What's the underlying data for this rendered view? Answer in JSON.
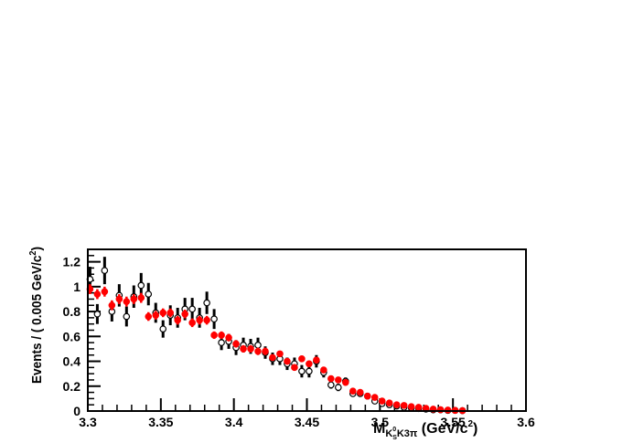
{
  "chart_data": {
    "type": "scatter",
    "title": "",
    "xlabel": {
      "main": "M",
      "sub": "K",
      "sub_super": "0",
      "sub_sub": "S",
      "sub_rest": "K3π",
      "units_open": " (GeV/c",
      "units_sup": "2",
      "units_close": ")"
    },
    "ylabel": {
      "main": "Events / ( 0.005 GeV/c",
      "sup": "2",
      "close": ")"
    },
    "xlim": [
      3.3,
      3.6
    ],
    "ylim": [
      0,
      1.3
    ],
    "x_ticks": [
      "3.3",
      "3.35",
      "3.4",
      "3.45",
      "3.5",
      "3.55",
      "3.6"
    ],
    "x_tick_values": [
      3.3,
      3.35,
      3.4,
      3.45,
      3.5,
      3.55,
      3.6
    ],
    "y_ticks": [
      "0",
      "0.2",
      "0.4",
      "0.6",
      "0.8",
      "1",
      "1.2"
    ],
    "y_tick_values": [
      0,
      0.2,
      0.4,
      0.6,
      0.8,
      1.0,
      1.2
    ],
    "grid": false,
    "colors": {
      "open_series": "#000000",
      "filled_series": "#ff0000",
      "axis": "#000000"
    },
    "series": [
      {
        "marker": "open-circle",
        "x": [
          3.3015,
          3.3065,
          3.3115,
          3.3165,
          3.3215,
          3.3265,
          3.3315,
          3.3365,
          3.3415,
          3.3465,
          3.3515,
          3.3565,
          3.3615,
          3.3665,
          3.3715,
          3.3765,
          3.3815,
          3.3865,
          3.3915,
          3.3965,
          3.4015,
          3.4065,
          3.4115,
          3.4165,
          3.4215,
          3.4265,
          3.4315,
          3.4365,
          3.4415,
          3.4465,
          3.4515,
          3.4565,
          3.4615,
          3.4665,
          3.4715,
          3.4765,
          3.4815,
          3.4865,
          3.4915,
          3.4965,
          3.5015,
          3.5065,
          3.5115,
          3.5165,
          3.5215,
          3.5265,
          3.5315,
          3.5365,
          3.5415,
          3.5465,
          3.5515,
          3.5565
        ],
        "y": [
          1.06,
          0.78,
          1.13,
          0.8,
          0.93,
          0.76,
          0.92,
          1.01,
          0.94,
          0.79,
          0.66,
          0.77,
          0.75,
          0.82,
          0.82,
          0.75,
          0.87,
          0.74,
          0.55,
          0.56,
          0.51,
          0.53,
          0.52,
          0.53,
          0.47,
          0.42,
          0.42,
          0.38,
          0.38,
          0.32,
          0.32,
          0.4,
          0.31,
          0.21,
          0.19,
          0.24,
          0.14,
          0.14,
          0.12,
          0.08,
          0.06,
          0.05,
          0.04,
          0.03,
          0.025,
          0.02,
          0.015,
          0.01,
          0.01,
          0.005,
          0.005,
          0.003
        ],
        "err": [
          0.1,
          0.08,
          0.11,
          0.08,
          0.09,
          0.08,
          0.09,
          0.1,
          0.09,
          0.08,
          0.07,
          0.08,
          0.08,
          0.09,
          0.09,
          0.08,
          0.09,
          0.08,
          0.06,
          0.06,
          0.06,
          0.06,
          0.06,
          0.06,
          0.05,
          0.05,
          0.05,
          0.05,
          0.05,
          0.05,
          0.05,
          0.05,
          0.04,
          0.03,
          0.03,
          0.03,
          0.02,
          0.02,
          0.02,
          0.01,
          0.01,
          0.01,
          0.01,
          0.008,
          0.006,
          0.005,
          0.004,
          0.003,
          0.003,
          0.002,
          0.002,
          0.002
        ]
      },
      {
        "marker": "filled-circle",
        "x": [
          3.3015,
          3.3065,
          3.3115,
          3.3165,
          3.3215,
          3.3265,
          3.3315,
          3.3365,
          3.3415,
          3.3465,
          3.3515,
          3.3565,
          3.3615,
          3.3665,
          3.3715,
          3.3765,
          3.3815,
          3.3865,
          3.3915,
          3.3965,
          3.4015,
          3.4065,
          3.4115,
          3.4165,
          3.4215,
          3.4265,
          3.4315,
          3.4365,
          3.4415,
          3.4465,
          3.4515,
          3.4565,
          3.4615,
          3.4665,
          3.4715,
          3.4765,
          3.4815,
          3.4865,
          3.4915,
          3.4965,
          3.5015,
          3.5065,
          3.5115,
          3.5165,
          3.5215,
          3.5265,
          3.5315,
          3.5365,
          3.5415,
          3.5465,
          3.5515,
          3.5565
        ],
        "y": [
          0.98,
          0.94,
          0.96,
          0.85,
          0.9,
          0.88,
          0.9,
          0.91,
          0.76,
          0.77,
          0.79,
          0.79,
          0.73,
          0.78,
          0.71,
          0.73,
          0.73,
          0.61,
          0.61,
          0.59,
          0.54,
          0.5,
          0.5,
          0.48,
          0.48,
          0.43,
          0.46,
          0.4,
          0.35,
          0.42,
          0.38,
          0.41,
          0.33,
          0.26,
          0.25,
          0.23,
          0.16,
          0.15,
          0.12,
          0.11,
          0.08,
          0.065,
          0.05,
          0.045,
          0.035,
          0.03,
          0.022,
          0.015,
          0.011,
          0.008,
          0.005,
          0.003
        ],
        "err": [
          0.04,
          0.04,
          0.04,
          0.04,
          0.04,
          0.04,
          0.04,
          0.04,
          0.035,
          0.035,
          0.035,
          0.035,
          0.035,
          0.035,
          0.035,
          0.035,
          0.035,
          0.03,
          0.03,
          0.03,
          0.03,
          0.03,
          0.03,
          0.03,
          0.03,
          0.025,
          0.025,
          0.025,
          0.025,
          0.025,
          0.025,
          0.025,
          0.02,
          0.02,
          0.02,
          0.02,
          0.015,
          0.015,
          0.012,
          0.012,
          0.01,
          0.008,
          0.007,
          0.006,
          0.005,
          0.004,
          0.003,
          0.003,
          0.002,
          0.002,
          0.002,
          0.001
        ]
      }
    ]
  }
}
